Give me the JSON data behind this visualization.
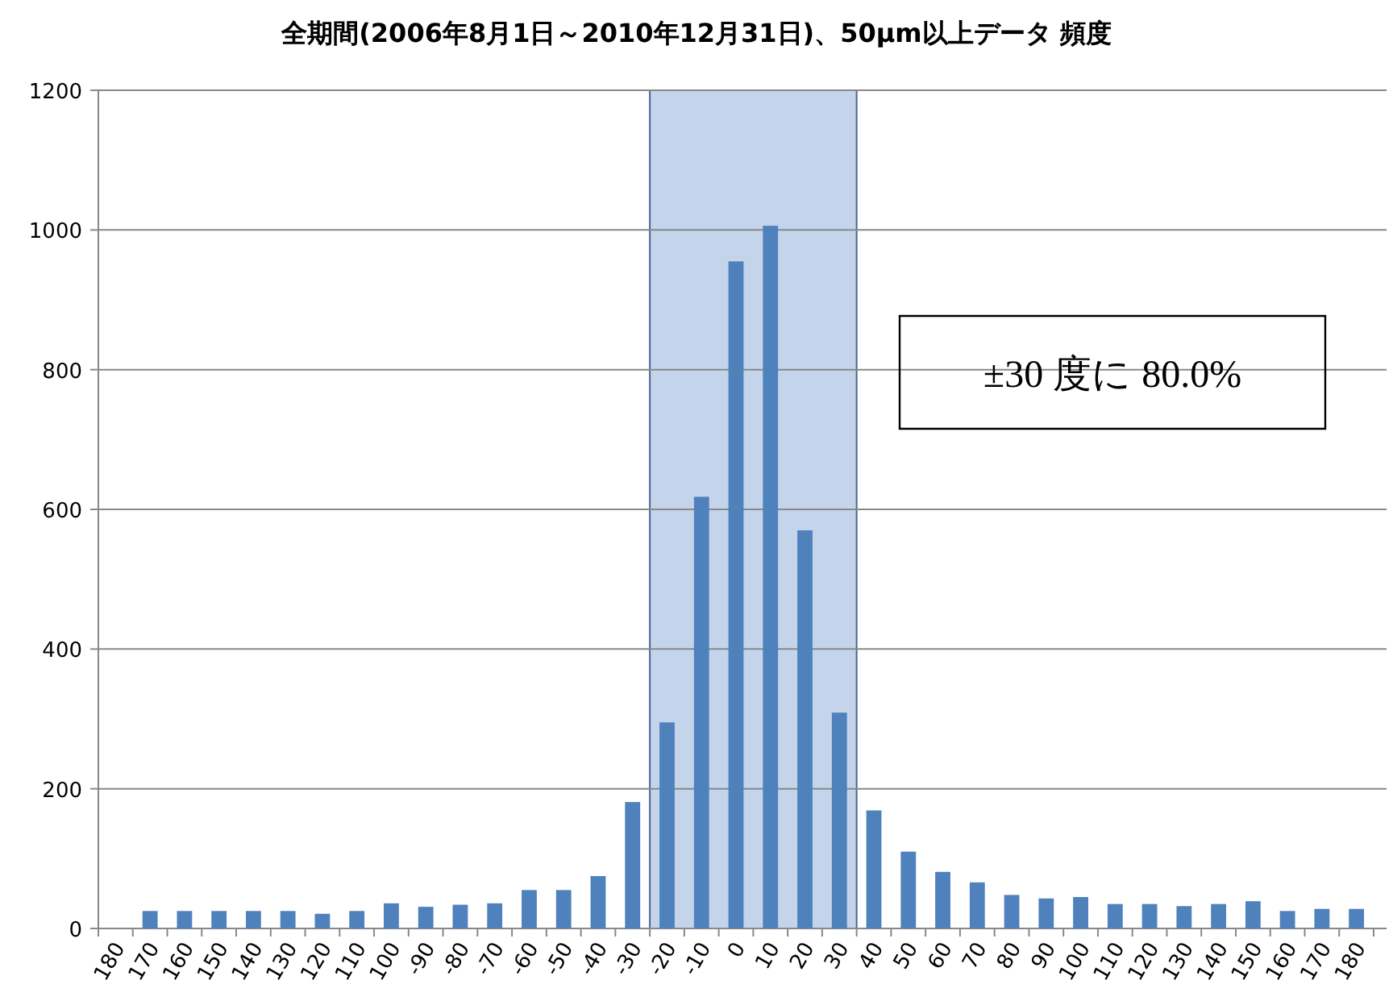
{
  "chart_data": {
    "type": "bar",
    "title": "全期間(2006年8月1日～2010年12月31日)、50μm以上データ  頻度",
    "categories": [
      "180",
      "170",
      "160",
      "150",
      "140",
      "130",
      "120",
      "110",
      "100",
      "-90",
      "-80",
      "-70",
      "-60",
      "-50",
      "-40",
      "-30",
      "-20",
      "-10",
      "0",
      "10",
      "20",
      "30",
      "40",
      "50",
      "60",
      "70",
      "80",
      "90",
      "100",
      "110",
      "120",
      "130",
      "140",
      "150",
      "160",
      "170",
      "180"
    ],
    "values": [
      0,
      25,
      25,
      25,
      25,
      25,
      21,
      25,
      36,
      31,
      34,
      36,
      55,
      55,
      75,
      181,
      295,
      618,
      955,
      1006,
      570,
      309,
      169,
      110,
      81,
      66,
      48,
      43,
      45,
      35,
      35,
      32,
      35,
      39,
      25,
      28,
      28
    ],
    "color": "#4f81bd",
    "ylim": [
      0,
      1200
    ],
    "yticks": [
      0,
      200,
      400,
      600,
      800,
      1000,
      1200
    ],
    "grid": "y",
    "bands": [
      {
        "axis": "x",
        "from": "-20",
        "to": "30",
        "color": "#c4d4ea"
      }
    ],
    "annotations": [
      "±30 度に 80.0%"
    ]
  }
}
